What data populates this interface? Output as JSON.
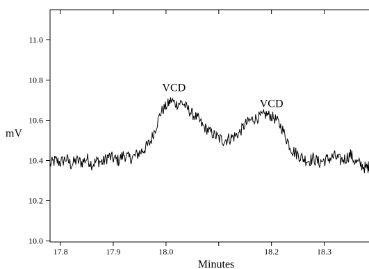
{
  "chart_data": {
    "type": "line",
    "title": "",
    "xlabel": "Minutes",
    "ylabel": "mV",
    "xlim": [
      17.78,
      18.385
    ],
    "ylim": [
      9.995,
      11.15
    ],
    "x_ticks": [
      17.8,
      17.9,
      18.0,
      18.1,
      18.2,
      18.3
    ],
    "x_tick_labels": [
      "17.8",
      "17.9",
      "18.0",
      "",
      "18.2",
      "18.3"
    ],
    "y_ticks": [
      10.0,
      10.2,
      10.4,
      10.6,
      10.8,
      11.0
    ],
    "y_tick_labels": [
      "10.0",
      "10.2",
      "10.4",
      "10.6",
      "10.8",
      "11.0"
    ],
    "grid": false,
    "legend": "none",
    "line_color": "#000000",
    "annotations": [
      {
        "text": "VCD",
        "x": 18.015,
        "y": 10.745
      },
      {
        "text": "VCD",
        "x": 18.2,
        "y": 10.665
      }
    ],
    "series": [
      {
        "x": [
          17.78,
          17.79,
          17.8,
          17.81,
          17.82,
          17.83,
          17.84,
          17.85,
          17.86,
          17.87,
          17.88,
          17.89,
          17.9,
          17.91,
          17.92,
          17.93,
          17.94,
          17.95,
          17.96,
          17.97,
          17.98,
          17.99,
          18.0,
          18.01,
          18.02,
          18.03,
          18.04,
          18.05,
          18.06,
          18.07,
          18.08,
          18.09,
          18.1,
          18.11,
          18.12,
          18.13,
          18.14,
          18.15,
          18.16,
          18.17,
          18.18,
          18.19,
          18.2,
          18.21,
          18.22,
          18.23,
          18.24,
          18.25,
          18.26,
          18.27,
          18.28,
          18.29,
          18.3,
          18.31,
          18.32,
          18.33,
          18.34,
          18.35,
          18.36,
          18.37,
          18.38,
          18.385
        ],
        "y": [
          10.38,
          10.4,
          10.39,
          10.41,
          10.38,
          10.4,
          10.39,
          10.41,
          10.38,
          10.4,
          10.39,
          10.42,
          10.41,
          10.4,
          10.43,
          10.41,
          10.42,
          10.44,
          10.46,
          10.49,
          10.56,
          10.64,
          10.67,
          10.7,
          10.68,
          10.69,
          10.66,
          10.63,
          10.61,
          10.57,
          10.55,
          10.53,
          10.51,
          10.5,
          10.51,
          10.52,
          10.54,
          10.58,
          10.6,
          10.61,
          10.62,
          10.63,
          10.62,
          10.6,
          10.56,
          10.5,
          10.45,
          10.43,
          10.41,
          10.4,
          10.41,
          10.39,
          10.4,
          10.41,
          10.42,
          10.4,
          10.41,
          10.43,
          10.39,
          10.38,
          10.36,
          10.37
        ]
      }
    ]
  }
}
